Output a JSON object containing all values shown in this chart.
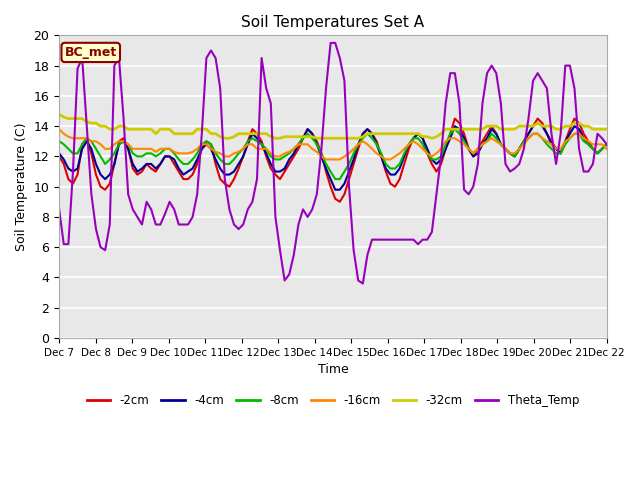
{
  "title": "Soil Temperatures Set A",
  "ylabel": "Soil Temperature (C)",
  "xlabel": "Time",
  "annotation": "BC_met",
  "ylim": [
    0,
    20
  ],
  "background_color": "#e8e8e8",
  "figure_color": "#ffffff",
  "series": {
    "-2cm": {
      "color": "#dd0000",
      "lw": 1.5
    },
    "-4cm": {
      "color": "#000099",
      "lw": 1.5
    },
    "-8cm": {
      "color": "#00bb00",
      "lw": 1.5
    },
    "-16cm": {
      "color": "#ff8800",
      "lw": 1.5
    },
    "-32cm": {
      "color": "#cccc00",
      "lw": 2.0
    },
    "Theta_Temp": {
      "color": "#9900bb",
      "lw": 1.5
    }
  },
  "x_tick_labels": [
    "Dec 7",
    "Dec 8",
    "Dec 9",
    "Dec 10",
    "Dec 11",
    "Dec 12",
    "Dec 13",
    "Dec 14",
    "Dec 15",
    "Dec 16",
    "Dec 17",
    "Dec 18",
    "Dec 19",
    "Dec 20",
    "Dec 21",
    "Dec 22"
  ],
  "x_ticks": [
    0,
    24,
    48,
    72,
    96,
    120,
    144,
    168,
    192,
    216,
    240,
    264,
    288,
    312,
    336,
    360
  ],
  "data_2cm": [
    12.0,
    11.5,
    10.5,
    10.2,
    10.8,
    12.8,
    13.2,
    12.2,
    10.8,
    10.0,
    9.8,
    10.2,
    11.5,
    13.0,
    13.2,
    12.5,
    11.2,
    10.8,
    11.0,
    11.5,
    11.2,
    11.0,
    11.5,
    12.0,
    12.0,
    11.5,
    11.0,
    10.5,
    10.5,
    10.8,
    11.5,
    12.5,
    13.0,
    12.8,
    11.5,
    10.5,
    10.2,
    10.0,
    10.5,
    11.2,
    12.0,
    13.0,
    13.8,
    13.5,
    13.0,
    12.0,
    11.2,
    10.8,
    10.5,
    11.0,
    11.5,
    12.0,
    12.5,
    13.2,
    13.8,
    13.5,
    13.0,
    12.2,
    11.0,
    10.0,
    9.2,
    9.0,
    9.5,
    10.5,
    11.5,
    12.5,
    13.5,
    13.8,
    13.5,
    13.0,
    12.0,
    11.0,
    10.2,
    10.0,
    10.5,
    11.5,
    12.5,
    13.2,
    13.5,
    13.2,
    12.2,
    11.5,
    11.0,
    11.5,
    12.5,
    13.5,
    14.5,
    14.2,
    13.5,
    12.5,
    12.0,
    12.5,
    13.0,
    13.5,
    14.0,
    13.5,
    12.8,
    12.5,
    12.2,
    12.0,
    12.5,
    13.0,
    13.5,
    14.0,
    14.5,
    14.2,
    13.5,
    13.0,
    12.5,
    12.2,
    13.0,
    13.8,
    14.5,
    14.2,
    13.5,
    13.0,
    12.5,
    12.2,
    12.5,
    12.8
  ],
  "data_4cm": [
    12.2,
    11.8,
    11.2,
    11.0,
    11.2,
    12.5,
    13.0,
    12.5,
    11.5,
    10.8,
    10.5,
    10.8,
    11.5,
    12.8,
    13.0,
    12.5,
    11.5,
    11.0,
    11.2,
    11.5,
    11.5,
    11.2,
    11.5,
    12.0,
    12.0,
    11.8,
    11.2,
    10.8,
    11.0,
    11.2,
    11.8,
    12.5,
    12.8,
    12.5,
    11.8,
    11.2,
    10.8,
    10.8,
    11.0,
    11.5,
    12.0,
    12.8,
    13.5,
    13.2,
    12.8,
    12.2,
    11.5,
    11.0,
    11.0,
    11.2,
    11.8,
    12.2,
    12.8,
    13.2,
    13.8,
    13.5,
    12.8,
    12.0,
    11.2,
    10.5,
    9.8,
    9.8,
    10.2,
    11.0,
    11.8,
    12.8,
    13.5,
    13.8,
    13.5,
    12.8,
    12.0,
    11.2,
    10.8,
    10.8,
    11.2,
    12.0,
    12.8,
    13.2,
    13.5,
    13.2,
    12.5,
    11.8,
    11.5,
    11.8,
    12.5,
    13.2,
    14.0,
    13.8,
    13.2,
    12.5,
    12.0,
    12.2,
    12.8,
    13.2,
    13.8,
    13.5,
    12.8,
    12.5,
    12.2,
    12.0,
    12.5,
    13.0,
    13.5,
    14.0,
    14.2,
    14.0,
    13.5,
    12.8,
    12.5,
    12.2,
    13.0,
    13.5,
    14.0,
    13.8,
    13.2,
    12.8,
    12.5,
    12.2,
    12.5,
    12.8
  ],
  "data_8cm": [
    13.0,
    12.8,
    12.5,
    12.2,
    12.2,
    12.8,
    13.2,
    13.0,
    12.5,
    12.0,
    11.5,
    11.8,
    12.2,
    12.8,
    13.0,
    12.8,
    12.2,
    12.0,
    12.0,
    12.2,
    12.2,
    12.0,
    12.2,
    12.5,
    12.5,
    12.2,
    11.8,
    11.5,
    11.5,
    11.8,
    12.2,
    12.8,
    13.0,
    12.8,
    12.2,
    11.8,
    11.5,
    11.5,
    11.8,
    12.2,
    12.5,
    13.0,
    13.2,
    13.0,
    12.8,
    12.5,
    12.0,
    11.8,
    11.8,
    12.0,
    12.2,
    12.5,
    12.8,
    13.2,
    13.5,
    13.2,
    12.8,
    12.2,
    11.5,
    11.0,
    10.5,
    10.5,
    11.0,
    11.5,
    12.2,
    12.8,
    13.2,
    13.5,
    13.2,
    12.8,
    12.2,
    11.5,
    11.2,
    11.2,
    11.5,
    12.2,
    12.8,
    13.2,
    13.2,
    12.8,
    12.2,
    11.8,
    11.8,
    12.0,
    12.8,
    13.5,
    13.8,
    13.5,
    13.0,
    12.5,
    12.2,
    12.5,
    12.8,
    13.0,
    13.5,
    13.2,
    12.8,
    12.5,
    12.2,
    12.0,
    12.5,
    13.0,
    13.2,
    13.5,
    13.5,
    13.2,
    12.8,
    12.5,
    12.2,
    12.2,
    12.8,
    13.2,
    13.5,
    13.5,
    13.0,
    12.8,
    12.5,
    12.2,
    12.5,
    12.8
  ],
  "data_16cm": [
    13.8,
    13.5,
    13.3,
    13.2,
    13.2,
    13.2,
    13.2,
    13.0,
    13.0,
    12.8,
    12.5,
    12.5,
    12.8,
    13.0,
    13.0,
    12.8,
    12.5,
    12.5,
    12.5,
    12.5,
    12.5,
    12.3,
    12.5,
    12.5,
    12.5,
    12.3,
    12.2,
    12.2,
    12.2,
    12.3,
    12.5,
    12.8,
    12.8,
    12.5,
    12.3,
    12.2,
    12.0,
    12.0,
    12.2,
    12.3,
    12.5,
    12.8,
    12.8,
    12.5,
    12.5,
    12.5,
    12.2,
    12.0,
    12.0,
    12.2,
    12.3,
    12.5,
    12.8,
    12.8,
    12.8,
    12.5,
    12.3,
    12.0,
    11.8,
    11.8,
    11.8,
    11.8,
    12.0,
    12.2,
    12.5,
    12.8,
    13.0,
    12.8,
    12.5,
    12.2,
    12.0,
    11.8,
    11.8,
    12.0,
    12.2,
    12.5,
    12.8,
    13.0,
    12.8,
    12.5,
    12.2,
    12.0,
    12.2,
    12.5,
    13.0,
    13.2,
    13.2,
    13.0,
    12.8,
    12.5,
    12.2,
    12.5,
    12.8,
    13.0,
    13.2,
    13.0,
    12.8,
    12.5,
    12.2,
    12.2,
    12.5,
    12.8,
    13.2,
    13.5,
    13.5,
    13.2,
    13.0,
    12.8,
    12.5,
    12.5,
    13.0,
    13.2,
    13.5,
    13.5,
    13.2,
    13.0,
    12.8,
    12.8,
    12.8,
    12.5
  ],
  "data_32cm": [
    14.8,
    14.6,
    14.5,
    14.5,
    14.5,
    14.5,
    14.3,
    14.2,
    14.2,
    14.0,
    14.0,
    13.8,
    13.8,
    14.0,
    14.0,
    13.8,
    13.8,
    13.8,
    13.8,
    13.8,
    13.8,
    13.5,
    13.8,
    13.8,
    13.8,
    13.5,
    13.5,
    13.5,
    13.5,
    13.5,
    13.8,
    13.8,
    13.8,
    13.5,
    13.5,
    13.3,
    13.2,
    13.2,
    13.3,
    13.5,
    13.5,
    13.5,
    13.5,
    13.5,
    13.5,
    13.5,
    13.3,
    13.2,
    13.2,
    13.3,
    13.3,
    13.3,
    13.3,
    13.3,
    13.3,
    13.3,
    13.2,
    13.2,
    13.2,
    13.2,
    13.2,
    13.2,
    13.2,
    13.2,
    13.2,
    13.2,
    13.3,
    13.5,
    13.5,
    13.5,
    13.5,
    13.5,
    13.5,
    13.5,
    13.5,
    13.5,
    13.5,
    13.5,
    13.5,
    13.3,
    13.3,
    13.2,
    13.3,
    13.5,
    13.8,
    13.8,
    13.8,
    13.8,
    13.8,
    13.8,
    13.8,
    13.8,
    13.8,
    14.0,
    14.0,
    14.0,
    13.8,
    13.8,
    13.8,
    13.8,
    14.0,
    14.0,
    14.0,
    14.0,
    14.2,
    14.0,
    14.0,
    14.0,
    13.8,
    13.8,
    14.0,
    14.0,
    14.2,
    14.2,
    14.0,
    14.0,
    13.8,
    13.8,
    13.8,
    13.8
  ],
  "data_theta": [
    8.5,
    6.2,
    6.2,
    11.0,
    17.8,
    18.5,
    14.0,
    9.5,
    7.2,
    6.0,
    5.8,
    7.5,
    18.0,
    18.5,
    14.5,
    9.5,
    8.5,
    8.0,
    7.5,
    9.0,
    8.5,
    7.5,
    7.5,
    8.2,
    9.0,
    8.5,
    7.5,
    7.5,
    7.5,
    8.0,
    9.5,
    13.5,
    18.5,
    19.0,
    18.5,
    16.5,
    10.5,
    8.5,
    7.5,
    7.2,
    7.5,
    8.5,
    9.0,
    10.5,
    18.5,
    16.5,
    15.5,
    8.0,
    5.8,
    3.8,
    4.2,
    5.5,
    7.5,
    8.5,
    8.0,
    8.5,
    9.5,
    12.5,
    16.5,
    19.5,
    19.5,
    18.5,
    17.0,
    10.0,
    5.8,
    3.8,
    3.6,
    5.5,
    6.5,
    6.5,
    6.5,
    6.5,
    6.5,
    6.5,
    6.5,
    6.5,
    6.5,
    6.5,
    6.2,
    6.5,
    6.5,
    7.0,
    9.5,
    12.0,
    15.5,
    17.5,
    17.5,
    15.5,
    9.8,
    9.5,
    10.0,
    11.5,
    15.5,
    17.5,
    18.0,
    17.5,
    15.5,
    11.5,
    11.0,
    11.2,
    11.5,
    12.5,
    14.5,
    17.0,
    17.5,
    17.0,
    16.5,
    13.5,
    11.5,
    13.5,
    18.0,
    18.0,
    16.5,
    12.5,
    11.0,
    11.0,
    11.5,
    13.5,
    13.2,
    12.8
  ]
}
